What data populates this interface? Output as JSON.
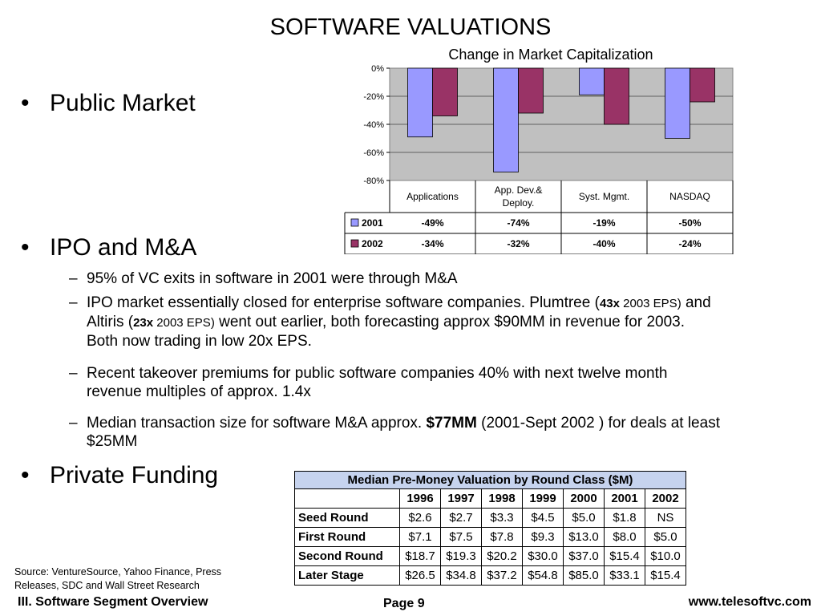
{
  "slide": {
    "title": "SOFTWARE VALUATIONS",
    "bullets": {
      "public_market": "Public Market",
      "ipo_ma": "IPO and M&A",
      "private_funding": "Private Funding"
    },
    "sub_bullets": {
      "vc_exits": "95% of VC exits in software in 2001 were through M&A",
      "ipo_market": {
        "p1": "IPO market essentially closed for enterprise software companies.  Plumtree (",
        "m1": "43x",
        "s1": " 2003 EPS)",
        "p2": " and Altiris (",
        "m2": "23x",
        "s2": " 2003 EPS)",
        "p3": " went out earlier, both forecasting approx $90MM in revenue for 2003.  Both now trading in low 20x EPS."
      },
      "takeover": "Recent takeover premiums for public software companies 40% with next twelve month revenue multiples of approx. 1.4x",
      "median": {
        "p1": "Median transaction size for software M&A approx. ",
        "b1": "$77MM",
        "p2": " (2001-Sept 2002 ) for deals at least $25MM"
      }
    }
  },
  "chart_data": {
    "type": "bar",
    "title": "Change in Market Capitalization",
    "categories": [
      "Applications",
      "App. Dev.& Deploy.",
      "Syst. Mgmt.",
      "NASDAQ"
    ],
    "series": [
      {
        "name": "2001",
        "values": [
          -49,
          -74,
          -19,
          -50
        ],
        "labels": [
          "-49%",
          "-74%",
          "-19%",
          "-50%"
        ],
        "color": "#9999ff"
      },
      {
        "name": "2002",
        "values": [
          -34,
          -32,
          -40,
          -24
        ],
        "labels": [
          "-34%",
          "-32%",
          "-40%",
          "-24%"
        ],
        "color": "#993366"
      }
    ],
    "ylim": [
      -80,
      0
    ],
    "yticks": [
      "0%",
      "-20%",
      "-40%",
      "-60%",
      "-80%"
    ],
    "plot_background": "#c0c0c0",
    "grid": true,
    "legend": "data-table"
  },
  "table": {
    "title": "Median Pre-Money Valuation by Round Class ($M)",
    "years": [
      "1996",
      "1997",
      "1998",
      "1999",
      "2000",
      "2001",
      "2002"
    ],
    "rows": [
      {
        "label": "Seed Round",
        "values": [
          "$2.6",
          "$2.7",
          "$3.3",
          "$4.5",
          "$5.0",
          "$1.8",
          "NS"
        ]
      },
      {
        "label": "First Round",
        "values": [
          "$7.1",
          "$7.5",
          "$7.8",
          "$9.3",
          "$13.0",
          "$8.0",
          "$5.0"
        ]
      },
      {
        "label": "Second Round",
        "values": [
          "$18.7",
          "$19.3",
          "$20.2",
          "$30.0",
          "$37.0",
          "$15.4",
          "$10.0"
        ]
      },
      {
        "label": "Later Stage",
        "values": [
          "$26.5",
          "$34.8",
          "$37.2",
          "$54.8",
          "$85.0",
          "$33.1",
          "$15.4"
        ]
      }
    ],
    "header_color": "#c6d3ee"
  },
  "footer": {
    "source": "Source: VentureSource, Yahoo Finance, Press Releases, SDC and Wall Street Research",
    "left": "III. Software Segment Overview",
    "page": "Page 9",
    "url": "www.telesoftvc.com"
  }
}
